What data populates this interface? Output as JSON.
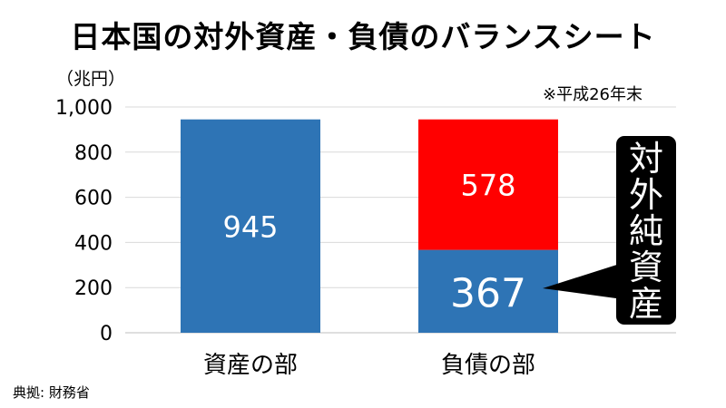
{
  "title": "日本国の対外資産・負債のバランスシート",
  "unit_label": "（兆円）",
  "note": "※平成26年末",
  "source": "典拠: 財務省",
  "callout": {
    "label": "対外純資産",
    "chars": [
      "対",
      "外",
      "純",
      "資",
      "産"
    ]
  },
  "colors": {
    "blue": "#2e74b5",
    "red": "#ff0000",
    "callout_bg": "#000000"
  },
  "chart_data": {
    "type": "bar",
    "stacked": true,
    "categories": [
      "資産の部",
      "負債の部"
    ],
    "series": [
      {
        "values": [
          945,
          367
        ],
        "color": "#2e74b5"
      },
      {
        "values": [
          0,
          578
        ],
        "color": "#ff0000"
      }
    ],
    "ylim": [
      0,
      1000
    ],
    "yticks": [
      0,
      200,
      400,
      600,
      800,
      1000
    ],
    "ytick_labels": [
      "0",
      "200",
      "400",
      "600",
      "800",
      "1,000"
    ],
    "ylabel": "（兆円）",
    "grid": true,
    "annotation": "対外純資産"
  }
}
